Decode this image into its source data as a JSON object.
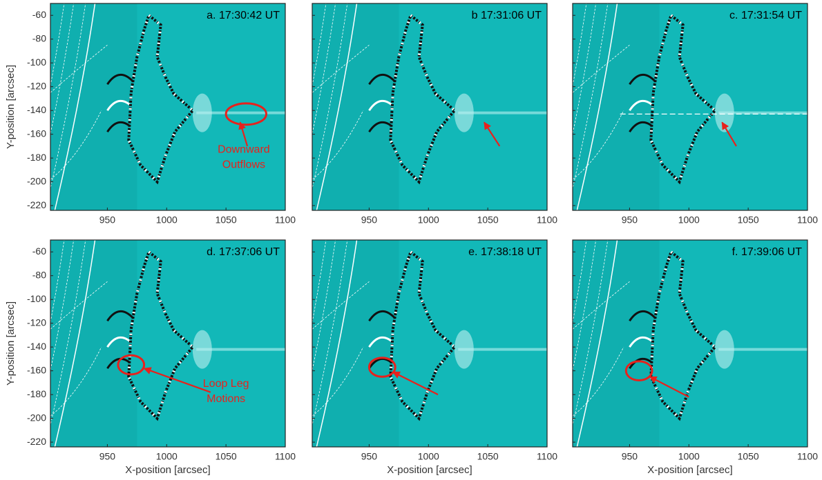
{
  "chart_data": [
    {
      "type": "image",
      "title": "a.  17:30:42 UT",
      "ylabel": "Y-position [arcsec]",
      "xlim": [
        902,
        1100
      ],
      "ylim": [
        -224,
        -50
      ],
      "xticks": [
        950,
        1000,
        1050,
        1100
      ],
      "yticks": [
        -60,
        -80,
        -100,
        -120,
        -140,
        -160,
        -180,
        -200,
        -220
      ],
      "ytick_labels": true,
      "annotations": [
        "Downward",
        "Outflows"
      ]
    },
    {
      "type": "image",
      "title": "b  17:31:06 UT",
      "xlim": [
        902,
        1100
      ],
      "ylim": [
        -224,
        -50
      ],
      "xticks": [
        950,
        1000,
        1050,
        1100
      ],
      "yticks": [
        -60,
        -80,
        -100,
        -120,
        -140,
        -160,
        -180,
        -200,
        -220
      ],
      "ytick_labels": false
    },
    {
      "type": "image",
      "title": "c.  17:31:54 UT",
      "xlim": [
        902,
        1100
      ],
      "ylim": [
        -224,
        -50
      ],
      "xticks": [
        950,
        1000,
        1050,
        1100
      ],
      "yticks": [
        -60,
        -80,
        -100,
        -120,
        -140,
        -160,
        -180,
        -200,
        -220
      ],
      "ytick_labels": false
    },
    {
      "type": "image",
      "title": "d.  17:37:06 UT",
      "xlabel": "X-position [arcsec]",
      "ylabel": "Y-position [arcsec]",
      "xlim": [
        902,
        1100
      ],
      "ylim": [
        -224,
        -50
      ],
      "xticks": [
        950,
        1000,
        1050,
        1100
      ],
      "yticks": [
        -60,
        -80,
        -100,
        -120,
        -140,
        -160,
        -180,
        -200,
        -220
      ],
      "ytick_labels": true,
      "annotations": [
        "Loop Leg",
        "Motions"
      ]
    },
    {
      "type": "image",
      "title": "e.  17:38:18 UT",
      "xlabel": "X-position [arcsec]",
      "xlim": [
        902,
        1100
      ],
      "ylim": [
        -224,
        -50
      ],
      "xticks": [
        950,
        1000,
        1050,
        1100
      ],
      "yticks": [
        -60,
        -80,
        -100,
        -120,
        -140,
        -160,
        -180,
        -200,
        -220
      ],
      "ytick_labels": false
    },
    {
      "type": "image",
      "title": "f.  17:39:06 UT",
      "xlabel": "X-position [arcsec]",
      "xlim": [
        902,
        1100
      ],
      "ylim": [
        -224,
        -50
      ],
      "xticks": [
        950,
        1000,
        1050,
        1100
      ],
      "yticks": [
        -60,
        -80,
        -100,
        -120,
        -140,
        -160,
        -180,
        -200,
        -220
      ],
      "ytick_labels": false
    }
  ]
}
